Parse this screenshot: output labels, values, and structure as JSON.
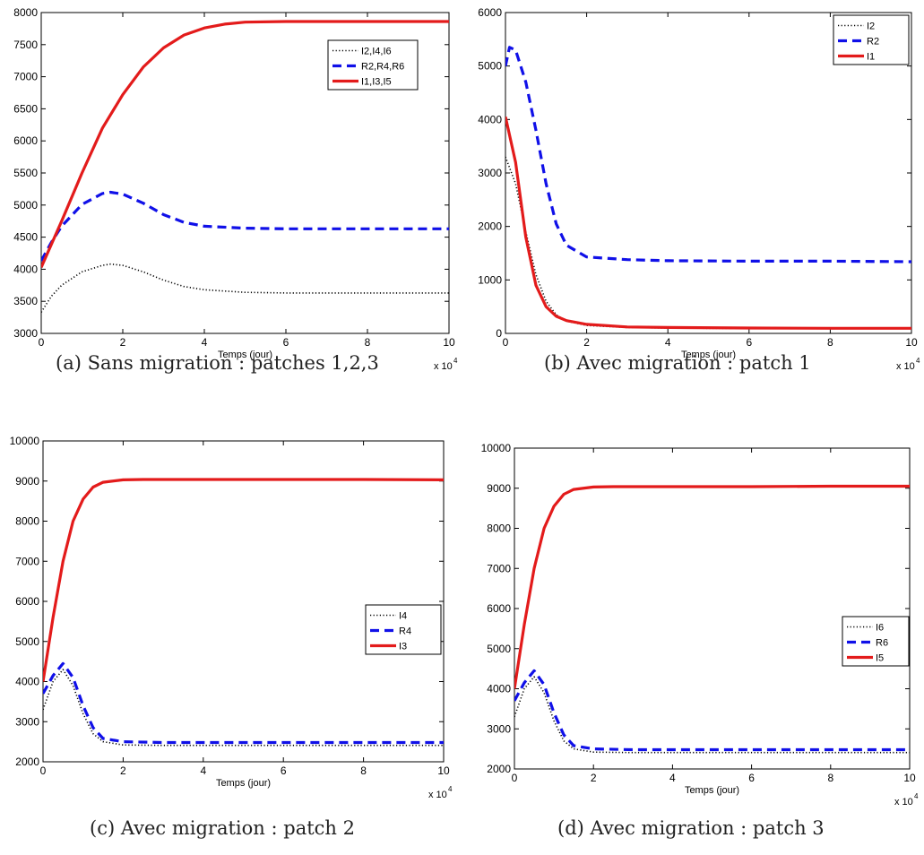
{
  "colors": {
    "black": "#000000",
    "blue": "#1010e8",
    "red": "#e31b1b"
  },
  "chart_data": [
    {
      "type": "line",
      "caption": "(a) Sans migration : patches 1,2,3",
      "xlabel": "Temps (jour)",
      "x_multiplier": "x 10",
      "x_multiplier_exp": "4",
      "xlim": [
        0,
        10
      ],
      "ylim": [
        3000,
        8000
      ],
      "xticks": [
        0,
        2,
        4,
        6,
        8,
        10
      ],
      "yticks": [
        3000,
        3500,
        4000,
        4500,
        5000,
        5500,
        6000,
        6500,
        7000,
        7500,
        8000
      ],
      "legend_position": "upper-right",
      "series": [
        {
          "name": "I2,I4,I6",
          "style": "dotted",
          "color": "#000000",
          "x": [
            0,
            0.25,
            0.5,
            1,
            1.5,
            1.7,
            2,
            2.5,
            3,
            3.5,
            4,
            5,
            6,
            7,
            8,
            9,
            10
          ],
          "y": [
            3330,
            3580,
            3750,
            3960,
            4060,
            4080,
            4060,
            3960,
            3830,
            3730,
            3680,
            3640,
            3630,
            3630,
            3630,
            3630,
            3630
          ]
        },
        {
          "name": "R2,R4,R6",
          "style": "dashed",
          "color": "#1010e8",
          "x": [
            0,
            0.25,
            0.5,
            1,
            1.5,
            1.7,
            2,
            2.5,
            3,
            3.5,
            4,
            5,
            6,
            7,
            8,
            9,
            10
          ],
          "y": [
            4130,
            4420,
            4670,
            5010,
            5180,
            5200,
            5170,
            5030,
            4850,
            4730,
            4670,
            4640,
            4630,
            4630,
            4630,
            4630,
            4630
          ]
        },
        {
          "name": "I1,I3,I5",
          "style": "solid",
          "color": "#e31b1b",
          "x": [
            0,
            0.5,
            1,
            1.5,
            2,
            2.5,
            3,
            3.5,
            4,
            4.5,
            5,
            6,
            7,
            8,
            9,
            10
          ],
          "y": [
            4030,
            4750,
            5500,
            6200,
            6720,
            7150,
            7450,
            7650,
            7760,
            7820,
            7850,
            7860,
            7860,
            7860,
            7860,
            7860
          ]
        }
      ]
    },
    {
      "type": "line",
      "caption": "(b) Avec migration : patch 1",
      "xlabel": "Temps (jour)",
      "x_multiplier": "x 10",
      "x_multiplier_exp": "4",
      "xlim": [
        0,
        10
      ],
      "ylim": [
        0,
        6000
      ],
      "xticks": [
        0,
        2,
        4,
        6,
        8,
        10
      ],
      "yticks": [
        0,
        1000,
        2000,
        3000,
        4000,
        5000,
        6000
      ],
      "legend_position": "top-right",
      "series": [
        {
          "name": "I2",
          "style": "dotted",
          "color": "#000000",
          "x": [
            0,
            0.25,
            0.5,
            0.75,
            1,
            1.25,
            1.5,
            2,
            3,
            4,
            6,
            8,
            10
          ],
          "y": [
            3300,
            2800,
            1900,
            1100,
            600,
            350,
            230,
            150,
            110,
            100,
            90,
            90,
            90
          ]
        },
        {
          "name": "R2",
          "style": "dashed",
          "color": "#1010e8",
          "x": [
            0,
            0.1,
            0.25,
            0.5,
            0.75,
            1,
            1.25,
            1.5,
            2,
            3,
            4,
            6,
            8,
            10
          ],
          "y": [
            5000,
            5350,
            5300,
            4700,
            3800,
            2800,
            2050,
            1650,
            1430,
            1380,
            1360,
            1350,
            1350,
            1340
          ]
        },
        {
          "name": "I1",
          "style": "solid",
          "color": "#e31b1b",
          "x": [
            0,
            0.25,
            0.5,
            0.75,
            1,
            1.25,
            1.5,
            2,
            3,
            4,
            6,
            8,
            10
          ],
          "y": [
            4050,
            3200,
            1800,
            900,
            500,
            320,
            240,
            170,
            120,
            110,
            100,
            95,
            95
          ]
        }
      ]
    },
    {
      "type": "line",
      "caption": "(c) Avec migration : patch 2",
      "xlabel": "Temps (jour)",
      "x_multiplier": "x 10",
      "x_multiplier_exp": "4",
      "xlim": [
        0,
        10
      ],
      "ylim": [
        2000,
        10000
      ],
      "xticks": [
        0,
        2,
        4,
        6,
        8,
        10
      ],
      "yticks": [
        2000,
        3000,
        4000,
        5000,
        6000,
        7000,
        8000,
        9000,
        10000
      ],
      "legend_position": "right",
      "series": [
        {
          "name": "I4",
          "style": "dotted",
          "color": "#000000",
          "x": [
            0,
            0.25,
            0.5,
            0.75,
            1,
            1.25,
            1.5,
            2,
            3,
            4,
            6,
            8,
            10
          ],
          "y": [
            3300,
            4000,
            4300,
            3900,
            3200,
            2700,
            2500,
            2420,
            2410,
            2410,
            2410,
            2410,
            2410
          ]
        },
        {
          "name": "R4",
          "style": "dashed",
          "color": "#1010e8",
          "x": [
            0,
            0.25,
            0.5,
            0.75,
            1,
            1.25,
            1.5,
            2,
            3,
            4,
            6,
            8,
            10
          ],
          "y": [
            3700,
            4150,
            4450,
            4100,
            3400,
            2850,
            2580,
            2500,
            2480,
            2480,
            2480,
            2480,
            2480
          ]
        },
        {
          "name": "I3",
          "style": "solid",
          "color": "#e31b1b",
          "x": [
            0,
            0.25,
            0.5,
            0.75,
            1,
            1.25,
            1.5,
            2,
            2.5,
            3,
            4,
            6,
            8,
            10
          ],
          "y": [
            4000,
            5600,
            7000,
            8000,
            8550,
            8850,
            8970,
            9030,
            9040,
            9040,
            9040,
            9040,
            9040,
            9030
          ]
        }
      ]
    },
    {
      "type": "line",
      "caption": "(d) Avec migration : patch 3",
      "xlabel": "Temps (jour)",
      "x_multiplier": "x 10",
      "x_multiplier_exp": "4",
      "xlim": [
        0,
        10
      ],
      "ylim": [
        2000,
        10000
      ],
      "xticks": [
        0,
        2,
        4,
        6,
        8,
        10
      ],
      "yticks": [
        2000,
        3000,
        4000,
        5000,
        6000,
        7000,
        8000,
        9000,
        10000
      ],
      "legend_position": "right",
      "series": [
        {
          "name": "I6",
          "style": "dotted",
          "color": "#000000",
          "x": [
            0,
            0.25,
            0.5,
            0.75,
            1,
            1.25,
            1.5,
            2,
            3,
            4,
            6,
            8,
            10
          ],
          "y": [
            3300,
            4000,
            4300,
            3900,
            3200,
            2700,
            2500,
            2420,
            2410,
            2410,
            2410,
            2410,
            2410
          ]
        },
        {
          "name": "R6",
          "style": "dashed",
          "color": "#1010e8",
          "x": [
            0,
            0.25,
            0.5,
            0.75,
            1,
            1.25,
            1.5,
            2,
            3,
            4,
            6,
            8,
            10
          ],
          "y": [
            3700,
            4150,
            4450,
            4100,
            3400,
            2850,
            2580,
            2500,
            2480,
            2480,
            2480,
            2480,
            2480
          ]
        },
        {
          "name": "I5",
          "style": "solid",
          "color": "#e31b1b",
          "x": [
            0,
            0.25,
            0.5,
            0.75,
            1,
            1.25,
            1.5,
            2,
            2.5,
            3,
            4,
            6,
            8,
            10
          ],
          "y": [
            4000,
            5600,
            7000,
            8000,
            8550,
            8850,
            8970,
            9030,
            9040,
            9040,
            9040,
            9040,
            9050,
            9050
          ]
        }
      ]
    }
  ]
}
